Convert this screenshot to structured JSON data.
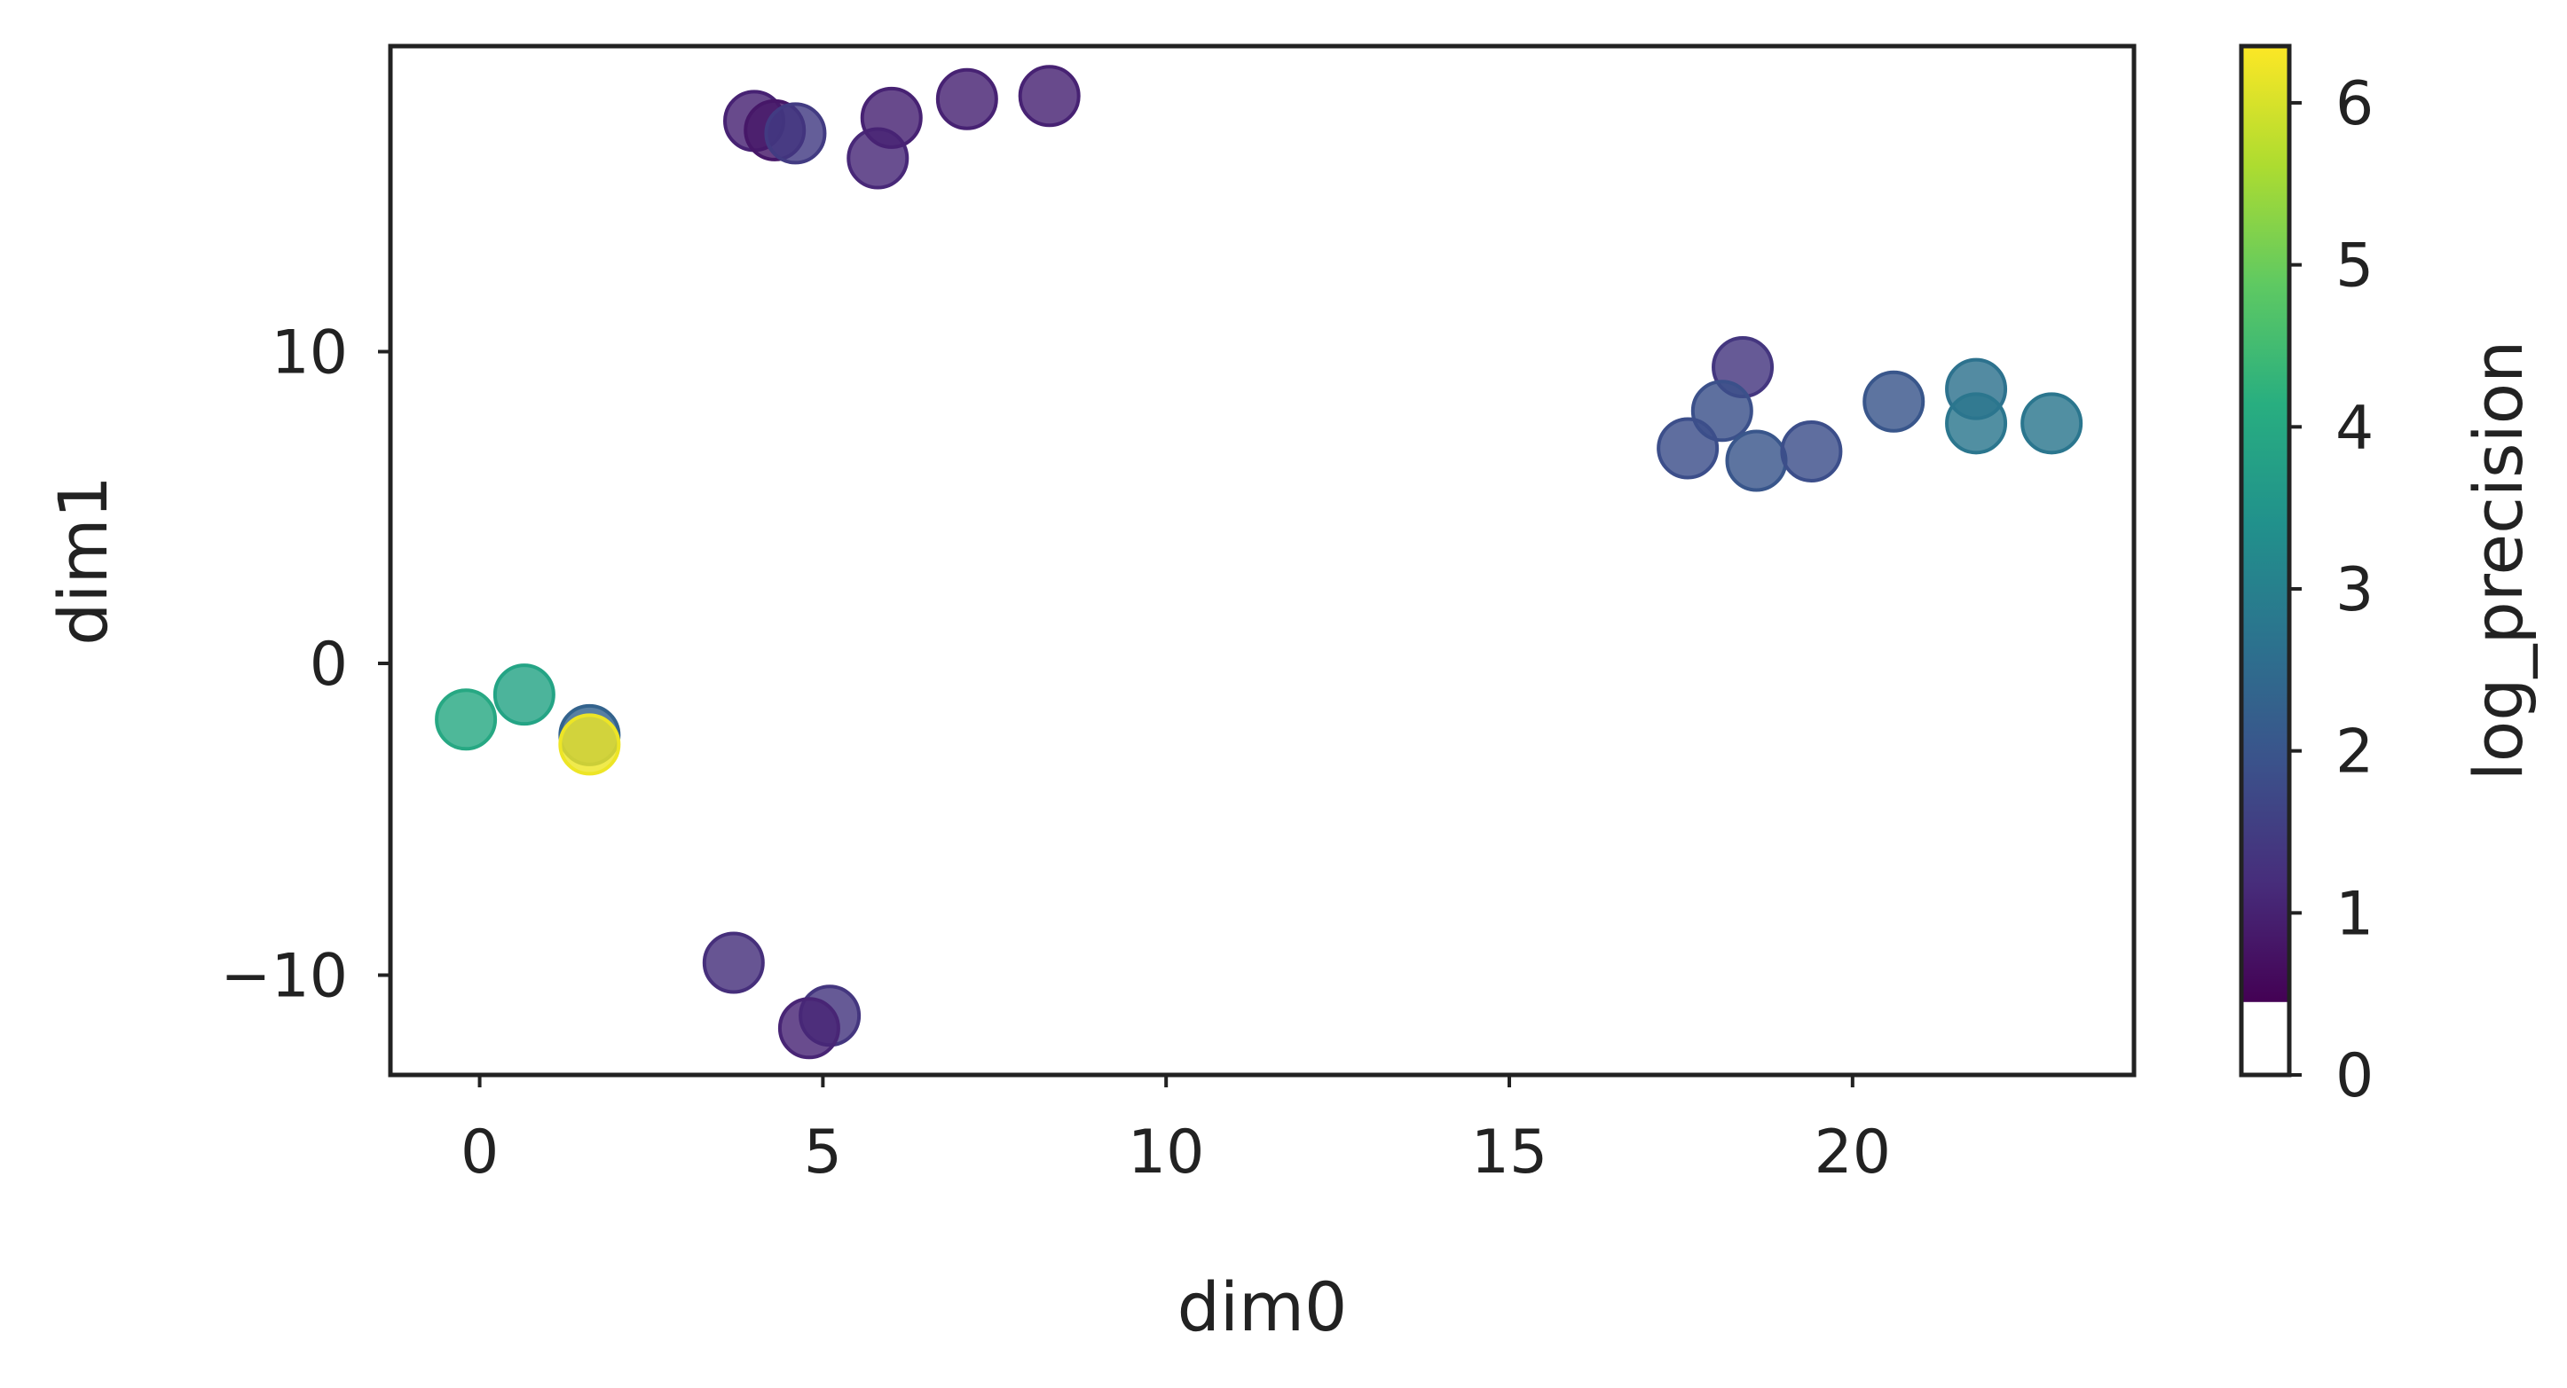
{
  "chart_data": {
    "type": "scatter",
    "title": "",
    "xlabel": "dim0",
    "ylabel": "dim1",
    "xlim": [
      -1.3,
      24.1
    ],
    "ylim": [
      -13.2,
      19.8
    ],
    "x_ticks": [
      0,
      5,
      10,
      15,
      20
    ],
    "y_ticks": [
      -10,
      0,
      10
    ],
    "x_tick_labels": [
      "0",
      "5",
      "10",
      "15",
      "20"
    ],
    "y_tick_labels": [
      "−10",
      "0",
      "10"
    ],
    "grid": false,
    "colorbar": {
      "label": "log_precision",
      "range": [
        0,
        6.35
      ],
      "ticks": [
        0,
        1,
        2,
        3,
        4,
        5,
        6
      ],
      "tick_labels": [
        "0",
        "1",
        "2",
        "3",
        "4",
        "5",
        "6"
      ],
      "colormap": "viridis",
      "filled_from": 0.45
    },
    "points": [
      {
        "x": -0.2,
        "y": -1.8,
        "c": 3.8
      },
      {
        "x": 0.65,
        "y": -1.0,
        "c": 3.7
      },
      {
        "x": 1.6,
        "y": -2.3,
        "c": 2.0
      },
      {
        "x": 1.6,
        "y": -2.6,
        "c": 6.2
      },
      {
        "x": 4.0,
        "y": 17.4,
        "c": 0.6
      },
      {
        "x": 4.3,
        "y": 17.1,
        "c": 0.4
      },
      {
        "x": 4.6,
        "y": 17.0,
        "c": 1.1
      },
      {
        "x": 5.8,
        "y": 16.2,
        "c": 0.7
      },
      {
        "x": 6.0,
        "y": 17.5,
        "c": 0.6
      },
      {
        "x": 7.1,
        "y": 18.1,
        "c": 0.6
      },
      {
        "x": 8.3,
        "y": 18.2,
        "c": 0.6
      },
      {
        "x": 3.7,
        "y": -9.6,
        "c": 0.85
      },
      {
        "x": 5.1,
        "y": -11.3,
        "c": 1.0
      },
      {
        "x": 4.8,
        "y": -11.7,
        "c": 0.65
      },
      {
        "x": 18.4,
        "y": 9.5,
        "c": 1.0
      },
      {
        "x": 18.1,
        "y": 8.1,
        "c": 1.55
      },
      {
        "x": 17.6,
        "y": 6.9,
        "c": 1.5
      },
      {
        "x": 18.6,
        "y": 6.5,
        "c": 1.7
      },
      {
        "x": 19.4,
        "y": 6.8,
        "c": 1.5
      },
      {
        "x": 20.6,
        "y": 8.4,
        "c": 1.7
      },
      {
        "x": 21.8,
        "y": 8.8,
        "c": 2.4
      },
      {
        "x": 21.8,
        "y": 7.7,
        "c": 2.5
      },
      {
        "x": 22.9,
        "y": 7.7,
        "c": 2.5
      }
    ]
  }
}
